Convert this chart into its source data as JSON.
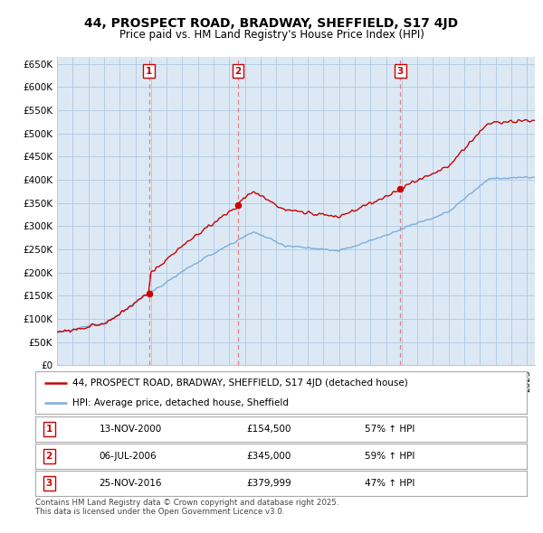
{
  "title1": "44, PROSPECT ROAD, BRADWAY, SHEFFIELD, S17 4JD",
  "title2": "Price paid vs. HM Land Registry's House Price Index (HPI)",
  "ylabel_ticks": [
    "£0",
    "£50K",
    "£100K",
    "£150K",
    "£200K",
    "£250K",
    "£300K",
    "£350K",
    "£400K",
    "£450K",
    "£500K",
    "£550K",
    "£600K",
    "£650K"
  ],
  "ytick_values": [
    0,
    50000,
    100000,
    150000,
    200000,
    250000,
    300000,
    350000,
    400000,
    450000,
    500000,
    550000,
    600000,
    650000
  ],
  "sale_times": [
    2000.875,
    2006.542,
    2016.917
  ],
  "sale_prices": [
    154500,
    345000,
    379999
  ],
  "sale_labels": [
    "1",
    "2",
    "3"
  ],
  "sale_info": [
    {
      "num": "1",
      "date": "13-NOV-2000",
      "price": "£154,500",
      "change": "57% ↑ HPI"
    },
    {
      "num": "2",
      "date": "06-JUL-2006",
      "price": "£345,000",
      "change": "59% ↑ HPI"
    },
    {
      "num": "3",
      "date": "25-NOV-2016",
      "price": "£379,999",
      "change": "47% ↑ HPI"
    }
  ],
  "legend_line1": "44, PROSPECT ROAD, BRADWAY, SHEFFIELD, S17 4JD (detached house)",
  "legend_line2": "HPI: Average price, detached house, Sheffield",
  "footnote": "Contains HM Land Registry data © Crown copyright and database right 2025.\nThis data is licensed under the Open Government Licence v3.0.",
  "hpi_color": "#7aaddb",
  "price_color": "#cc0000",
  "vline_color": "#e88080",
  "chart_bg": "#dce9f5",
  "background_color": "#ffffff",
  "grid_color": "#b0c8e0"
}
